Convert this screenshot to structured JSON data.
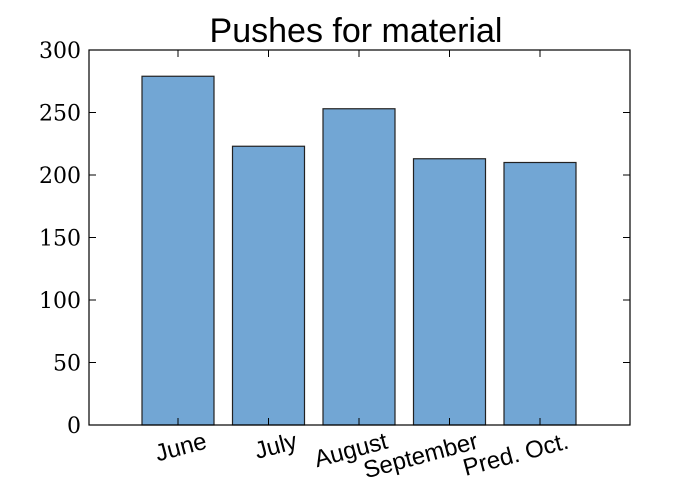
{
  "chart_data": {
    "type": "bar",
    "title": "Pushes for material",
    "categories": [
      "June",
      "July",
      "August",
      "September",
      "Pred. Oct."
    ],
    "values": [
      279,
      223,
      253,
      213,
      210
    ],
    "xlabel": "",
    "ylabel": "",
    "ylim": [
      0,
      300
    ],
    "yticks": [
      0,
      50,
      100,
      150,
      200,
      250,
      300
    ],
    "grid": false,
    "colors": {
      "bar": "#72a6d4",
      "edge": "#222222"
    }
  }
}
